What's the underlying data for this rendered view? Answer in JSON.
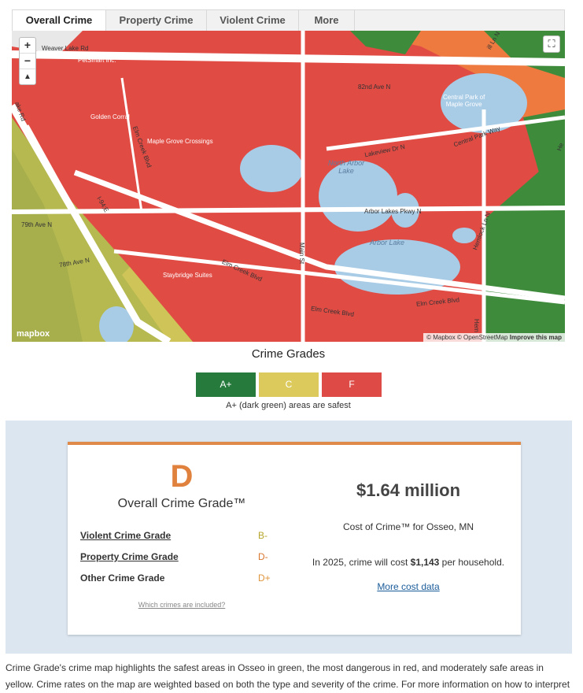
{
  "tabs": [
    "Overall Crime",
    "Property Crime",
    "Violent Crime",
    "More"
  ],
  "map": {
    "zoom_in": "+",
    "zoom_out": "−",
    "compass": "▲",
    "fullscreen": "⛶",
    "labels": {
      "weaver_lake_rd": "Weaver Lake Rd",
      "ave_82nd": "82nd Ave N",
      "north_arbor_lake": "North Arbor\nLake",
      "arbor_lake": "Arbor Lake",
      "central_park": "Central Park of\nMaple Grove",
      "central_park_way": "Central Park Way",
      "lakeview_dr": "Lakeview Dr N",
      "arbor_lakes_pkwy": "Arbor Lakes Pkwy N",
      "elm_creek_blvd_1": "Elm Creek Blvd",
      "elm_creek_blvd_2": "Elm Creek Blvd",
      "elm_creek_blvd_3": "Elm Creek Blvd",
      "elm_creek_blvd_4": "Elm Creek Blvd",
      "i94": "I-94;E",
      "ave_79th": "79th Ave N",
      "ave_78th": "78th Ave N",
      "main_st": "Main St",
      "hemlock_ln": "Hemlock Ln N",
      "lake_rd": "ake Rd",
      "maple_grove_crossings": "Maple Grove Crossings",
      "golden_corral": "Golden Corral",
      "staybridge": "Staybridge Suites",
      "petsmart": "PetSmart Inc.",
      "he": "He",
      "hem": "Hem",
      "ill_ln": "ill Ln N"
    },
    "logo": "mapbox",
    "attribution": "© Mapbox © OpenStreetMap",
    "improve": "Improve this map"
  },
  "legend": {
    "title": "Crime Grades",
    "items": [
      {
        "label": "A+",
        "color": "#267a3c"
      },
      {
        "label": "C",
        "color": "#dccb5c"
      },
      {
        "label": "F",
        "color": "#de4a45"
      }
    ],
    "note": "A+ (dark green) areas are safest"
  },
  "card": {
    "grade": "D",
    "grade_label": "Overall Crime Grade™",
    "rows": [
      {
        "label": "Violent Crime Grade",
        "value": "B-",
        "color": "#b5a52a"
      },
      {
        "label": "Property Crime Grade",
        "value": "D-",
        "color": "#d9762e"
      },
      {
        "label": "Other Crime Grade",
        "value": "D+",
        "color": "#e0953d"
      }
    ],
    "which_link": "Which crimes are included?",
    "cost": "$1.64 million",
    "cost_label": "Cost of Crime™ for Osseo, MN",
    "household_pre": "In 2025, crime will cost ",
    "household_amount": "$1,143",
    "household_post": " per household.",
    "more_cost": "More cost data"
  },
  "description": "Crime Grade's crime map highlights the safest areas in Osseo in green, the most dangerous in red, and moderately safe areas in yellow. Crime rates on the map are weighted based on both the type and severity of the crime. For more information on how to interpret"
}
